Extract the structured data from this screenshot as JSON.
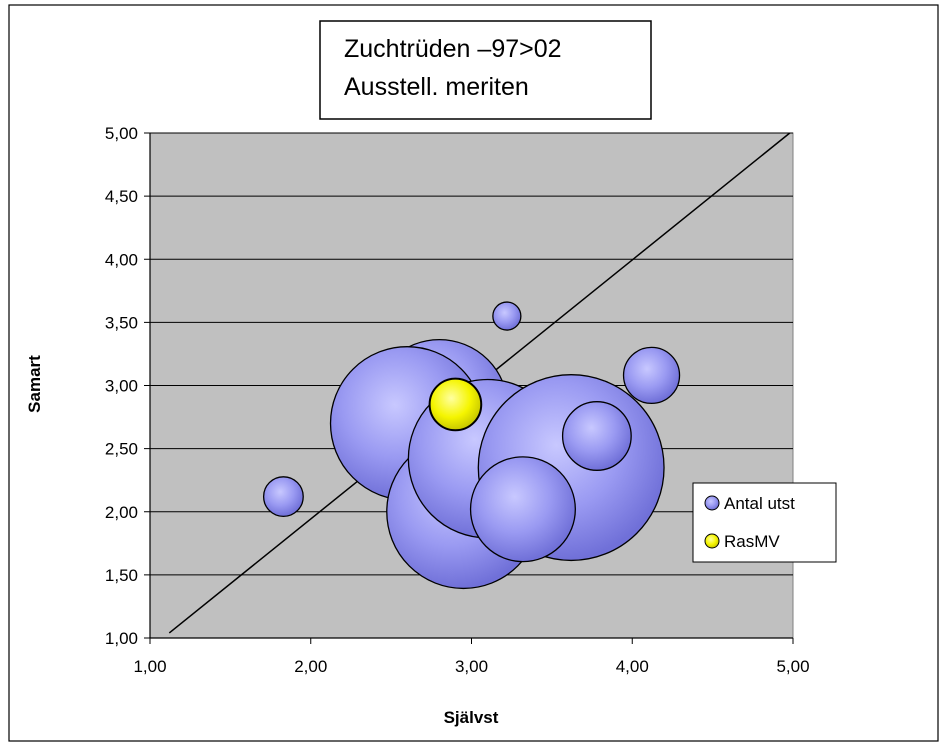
{
  "chart_data": {
    "type": "bubble",
    "title_lines": [
      "Zuchtrüden –97>02",
      "Ausstell. meriten"
    ],
    "xlabel": "Självst",
    "ylabel": "Samart",
    "xlim": [
      1,
      5
    ],
    "ylim": [
      1,
      5
    ],
    "x_ticks": [
      "1,00",
      "2,00",
      "3,00",
      "4,00",
      "5,00"
    ],
    "y_ticks": [
      "1,00",
      "1,50",
      "2,00",
      "2,50",
      "3,00",
      "3,50",
      "4,00",
      "4,50",
      "5,00"
    ],
    "grid": "horizontal",
    "legend_position": "right",
    "series": [
      {
        "name": "Antal utst",
        "color": "#8b8bf0",
        "points": [
          {
            "x": 1.83,
            "y": 2.12,
            "size": 1
          },
          {
            "x": 3.22,
            "y": 3.55,
            "size": 0.5
          },
          {
            "x": 4.12,
            "y": 3.08,
            "size": 2
          },
          {
            "x": 2.8,
            "y": 2.82,
            "size": 12
          },
          {
            "x": 2.6,
            "y": 2.7,
            "size": 15
          },
          {
            "x": 2.95,
            "y": 2.0,
            "size": 15
          },
          {
            "x": 3.1,
            "y": 2.42,
            "size": 16
          },
          {
            "x": 3.62,
            "y": 2.35,
            "size": 22
          },
          {
            "x": 3.78,
            "y": 2.6,
            "size": 3
          },
          {
            "x": 3.32,
            "y": 2.02,
            "size": 7
          }
        ]
      },
      {
        "name": "RasMV",
        "color": "#ffff00",
        "points": [
          {
            "x": 2.9,
            "y": 2.85,
            "size": 1.7
          }
        ]
      }
    ],
    "reference_line": {
      "from": [
        1.12,
        1.04
      ],
      "to": [
        4.98,
        5.0
      ]
    }
  }
}
